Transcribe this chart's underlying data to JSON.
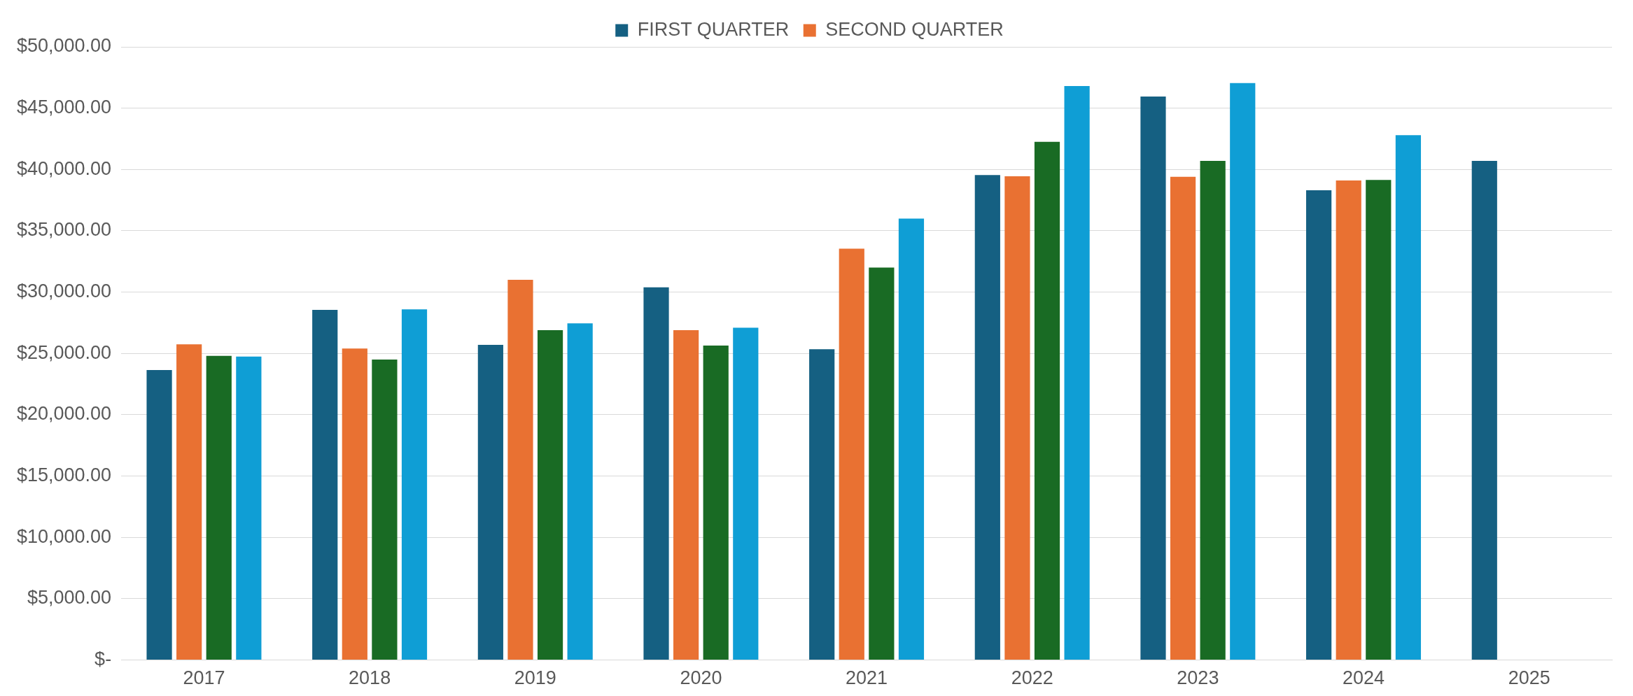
{
  "chart_data": {
    "type": "bar",
    "categories": [
      "2017",
      "2018",
      "2019",
      "2020",
      "2021",
      "2022",
      "2023",
      "2024",
      "2025"
    ],
    "series": [
      {
        "name": "FIRST QUARTER",
        "color": "#156082",
        "values": [
          23650,
          28550,
          25700,
          30400,
          25350,
          39550,
          45950,
          38300,
          40700
        ]
      },
      {
        "name": "SECOND QUARTER",
        "color": "#e97132",
        "values": [
          25750,
          25400,
          31000,
          26900,
          33550,
          39450,
          39400,
          39100,
          null
        ]
      },
      {
        "color": "#196b24",
        "values": [
          24800,
          24500,
          26900,
          25650,
          32000,
          42250,
          40700,
          39150,
          null
        ]
      },
      {
        "color": "#0f9ed5",
        "values": [
          24750,
          28600,
          27450,
          27100,
          36000,
          46800,
          47050,
          42800,
          null
        ]
      }
    ],
    "ylim": [
      0,
      50000
    ],
    "yticks": [
      {
        "value": 0,
        "label": "$-"
      },
      {
        "value": 5000,
        "label": "$5,000.00"
      },
      {
        "value": 10000,
        "label": "$10,000.00"
      },
      {
        "value": 15000,
        "label": "$15,000.00"
      },
      {
        "value": 20000,
        "label": "$20,000.00"
      },
      {
        "value": 25000,
        "label": "$25,000.00"
      },
      {
        "value": 30000,
        "label": "$30,000.00"
      },
      {
        "value": 35000,
        "label": "$35,000.00"
      },
      {
        "value": 40000,
        "label": "$40,000.00"
      },
      {
        "value": 45000,
        "label": "$45,000.00"
      },
      {
        "value": 50000,
        "label": "$50,000.00"
      }
    ],
    "grid": "y",
    "legend": "top"
  }
}
